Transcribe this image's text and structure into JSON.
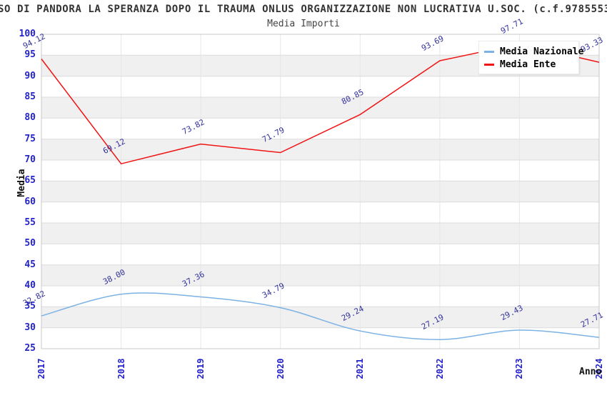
{
  "header": {
    "title": "SO DI PANDORA LA SPERANZA DOPO IL TRAUMA ONLUS ORGANIZZAZIONE NON LUCRATIVA U.SOC. (c.f.9785553",
    "subtitle": "Media Importi"
  },
  "legend": {
    "position": "top-right",
    "items": [
      {
        "label": "Media Nazionale",
        "color": "#7cb2e4"
      },
      {
        "label": "Media Ente",
        "color": "#f01414"
      }
    ]
  },
  "axes": {
    "y_title": "Media",
    "x_title": "Anno",
    "y_ticks": [
      100,
      95,
      90,
      85,
      80,
      75,
      70,
      65,
      60,
      55,
      50,
      45,
      40,
      35,
      30,
      25
    ],
    "x_ticks": [
      "2017",
      "2018",
      "2019",
      "2020",
      "2021",
      "2022",
      "2023",
      "2024"
    ]
  },
  "colors": {
    "tick_label": "#2222cc",
    "data_label": "#333399",
    "band": "#f0f0f0",
    "grid": "#dcdcdc",
    "vgrid": "#e7e7e7",
    "border": "#c8c8c8",
    "background": "#ffffff",
    "title": "#333333"
  },
  "chart_data": {
    "type": "line",
    "title": "Media Importi",
    "x": [
      2017,
      2018,
      2019,
      2020,
      2021,
      2022,
      2023,
      2024
    ],
    "series": [
      {
        "name": "Media Nazionale",
        "color": "#7cb2e4",
        "smooth": true,
        "values": [
          32.82,
          38.0,
          37.36,
          34.79,
          29.24,
          27.19,
          29.43,
          27.71
        ]
      },
      {
        "name": "Media Ente",
        "color": "#f01414",
        "smooth": false,
        "values": [
          94.12,
          69.12,
          73.82,
          71.79,
          80.85,
          93.69,
          97.71,
          93.33
        ]
      }
    ],
    "xlabel": "Anno",
    "ylabel": "Media",
    "ylim": [
      25,
      100
    ],
    "ytick_step": 5,
    "grid": true,
    "alternating_bands": true,
    "legend_position": "top-right",
    "data_labels": "all points, rotated, 2 decimals"
  }
}
